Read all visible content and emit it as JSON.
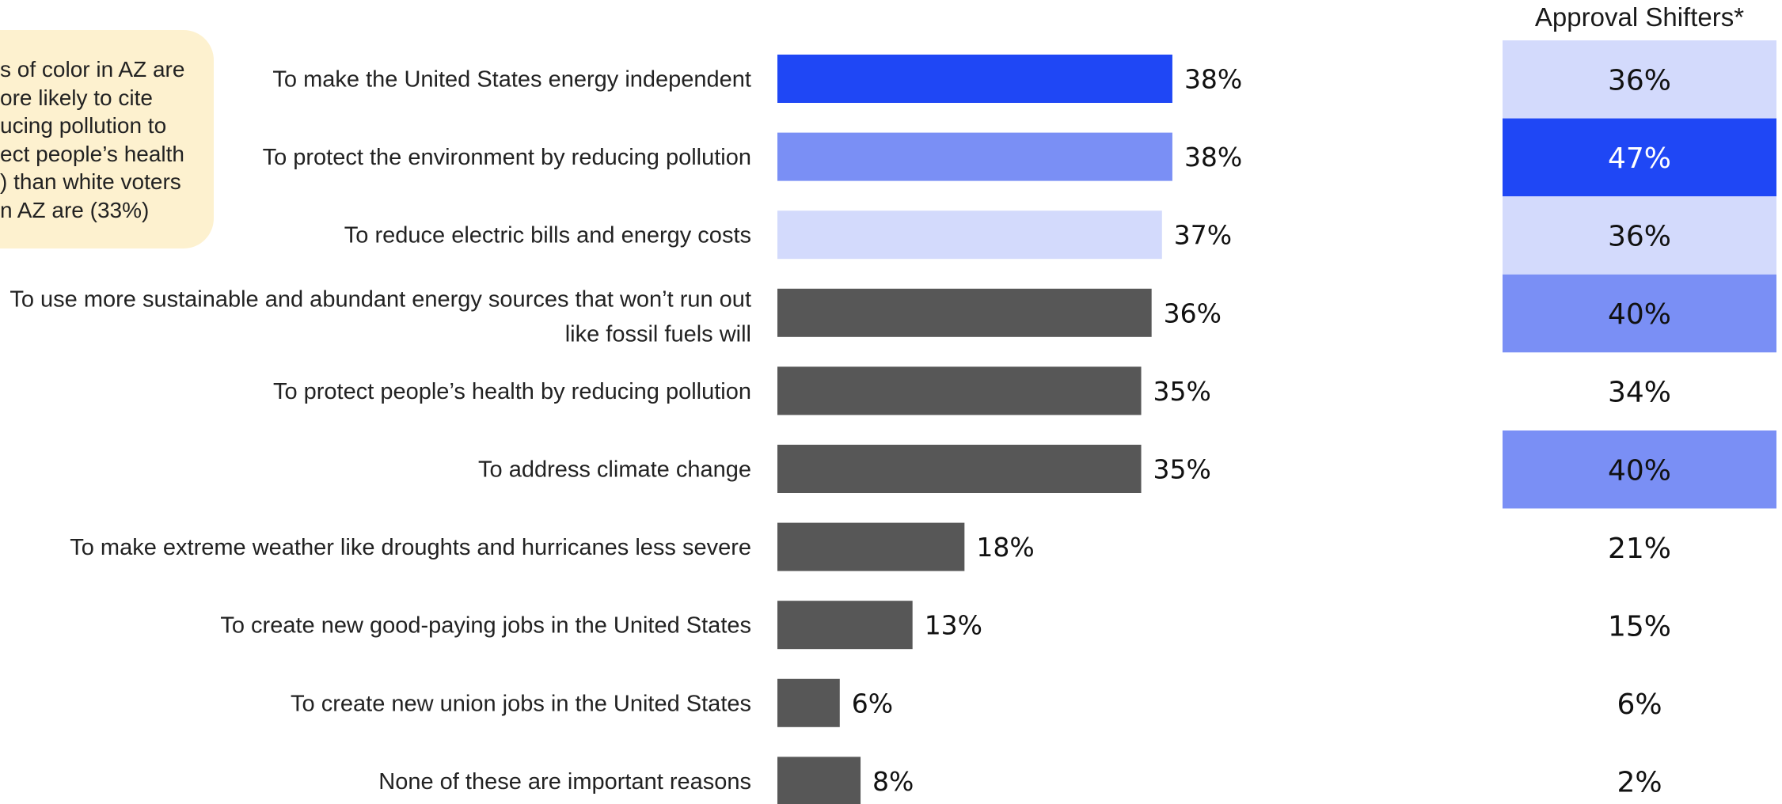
{
  "callout": {
    "lines": [
      "s of color in AZ are",
      "ore likely to cite",
      "ucing pollution to",
      "ect people’s health",
      ") than white voters",
      "n AZ are (33%)"
    ]
  },
  "approval_header": "Approval Shifters*",
  "colors": {
    "dark_gray": "#575757",
    "blue_strong": "#1f47f5",
    "blue_mid": "#7a8ff5",
    "blue_light": "#d3dafc",
    "callout_bg": "#fdf1cf",
    "white": "#ffffff"
  },
  "chart_data": {
    "type": "bar",
    "orientation": "horizontal",
    "categories": [
      [
        "To make the United States energy independent"
      ],
      [
        "To protect the environment by reducing pollution"
      ],
      [
        "To reduce electric bills and energy costs"
      ],
      [
        "To use more sustainable and abundant energy sources that won’t run out",
        "like fossil fuels will"
      ],
      [
        "To protect people’s health by reducing pollution"
      ],
      [
        "To address climate change"
      ],
      [
        "To make extreme weather like droughts and hurricanes less severe"
      ],
      [
        "To create new good-paying jobs in the United States"
      ],
      [
        "To create new union jobs in the United States"
      ],
      [
        "None of these are important reasons"
      ]
    ],
    "values": [
      38,
      38,
      37,
      36,
      35,
      35,
      18,
      13,
      6,
      8
    ],
    "value_labels": [
      "38%",
      "38%",
      "37%",
      "36%",
      "35%",
      "35%",
      "18%",
      "13%",
      "6%",
      "8%"
    ],
    "bar_colors": [
      "#1f47f5",
      "#7a8ff5",
      "#d3dafc",
      "#575757",
      "#575757",
      "#575757",
      "#575757",
      "#575757",
      "#575757",
      "#575757"
    ],
    "approval_shifters": {
      "title": "Approval Shifters*",
      "values": [
        36,
        47,
        36,
        40,
        34,
        40,
        21,
        15,
        6,
        2
      ],
      "labels": [
        "36%",
        "47%",
        "36%",
        "40%",
        "34%",
        "40%",
        "21%",
        "15%",
        "6%",
        "2%"
      ],
      "fill": [
        "#d3dafc",
        "#1f47f5",
        "#d3dafc",
        "#7a8ff5",
        "#ffffff",
        "#7a8ff5",
        "#ffffff",
        "#ffffff",
        "#ffffff",
        "#ffffff"
      ],
      "text": [
        "#111111",
        "#ffffff",
        "#111111",
        "#111111",
        "#111111",
        "#111111",
        "#111111",
        "#111111",
        "#111111",
        "#111111"
      ]
    }
  }
}
